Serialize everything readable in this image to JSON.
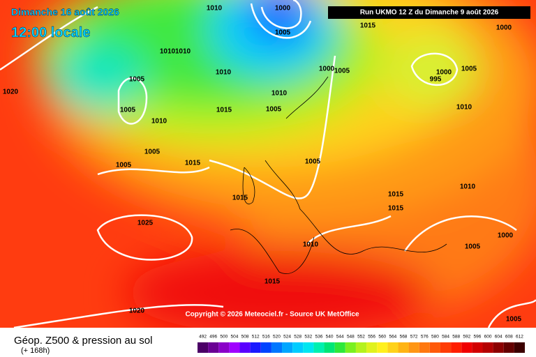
{
  "header": {
    "date": "Dimanche 16 août 2026",
    "time": "12:00 locale",
    "run": "Run UKMO 12 Z du Dimanche 9 août 2026"
  },
  "copyright": "Copyright © 2026 Meteociel.fr - Source UK MetOffice",
  "legend": {
    "title": "Géop. Z500 & pression au sol",
    "subtitle": "(+ 168h)",
    "ticks": [
      492,
      496,
      500,
      504,
      508,
      512,
      516,
      520,
      524,
      528,
      532,
      536,
      540,
      544,
      548,
      552,
      556,
      560,
      564,
      568,
      572,
      576,
      580,
      584,
      588,
      592,
      596,
      600,
      604,
      608,
      612
    ],
    "colors": [
      "#4b0066",
      "#6a0094",
      "#8a00c8",
      "#a000ff",
      "#5a00ff",
      "#1a1aff",
      "#0044ff",
      "#0077ff",
      "#00a6ff",
      "#00ccff",
      "#00e6f0",
      "#00f0b0",
      "#00e676",
      "#2ee83a",
      "#7af020",
      "#b4f21e",
      "#e0f21e",
      "#fff01e",
      "#ffd21a",
      "#ffb414",
      "#ff9614",
      "#ff780f",
      "#ff5a0a",
      "#ff3c05",
      "#ff1e00",
      "#f00000",
      "#d20000",
      "#b40000",
      "#8c0000",
      "#640000",
      "#3c0000"
    ]
  },
  "isobars": [
    1000,
    1005,
    1015,
    1010,
    1010,
    1010,
    1010,
    1005,
    1005,
    1010,
    1005,
    1005,
    1015,
    1015,
    1005,
    1010,
    1000,
    1005,
    1000,
    995,
    1005,
    1010,
    1000,
    1020,
    1005,
    1015,
    1025,
    1015,
    1015,
    1010,
    1010,
    1000,
    1005,
    1015,
    1020,
    1005
  ]
}
